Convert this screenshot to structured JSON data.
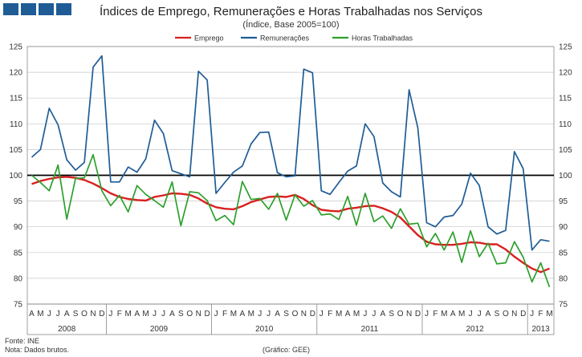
{
  "header": {
    "title": "Índices de Emprego, Remunerações e Horas Trabalhadas nos Serviços",
    "subtitle": "(Índice, Base 2005=100)"
  },
  "footer": {
    "source": "Fonte: INE",
    "note": "Nota: Dados brutos.",
    "credit": "(Gráfico: GEE)"
  },
  "colors": {
    "brand": "#1f5c96"
  },
  "chart_data": {
    "type": "line",
    "title": "Índices de Emprego, Remunerações e Horas Trabalhadas nos Serviços",
    "subtitle": "(Índice, Base 2005=100)",
    "legend_position": "top-center",
    "grid": true,
    "ylim": [
      75,
      125
    ],
    "yticks": [
      75,
      80,
      85,
      90,
      95,
      100,
      105,
      110,
      115,
      120,
      125
    ],
    "reference_line": 100,
    "x": [
      "A",
      "M",
      "J",
      "J",
      "A",
      "S",
      "O",
      "N",
      "D",
      "J",
      "F",
      "M",
      "A",
      "M",
      "J",
      "J",
      "A",
      "S",
      "O",
      "N",
      "D",
      "J",
      "F",
      "M",
      "A",
      "M",
      "J",
      "J",
      "A",
      "S",
      "O",
      "N",
      "D",
      "J",
      "F",
      "M",
      "A",
      "M",
      "J",
      "J",
      "A",
      "S",
      "O",
      "N",
      "D",
      "J",
      "F",
      "M",
      "A",
      "M",
      "J",
      "J",
      "A",
      "S",
      "O",
      "N",
      "D",
      "J",
      "F",
      "M"
    ],
    "years": [
      {
        "label": "2008",
        "start": 0,
        "count": 9
      },
      {
        "label": "2009",
        "start": 9,
        "count": 12
      },
      {
        "label": "2010",
        "start": 21,
        "count": 12
      },
      {
        "label": "2011",
        "start": 33,
        "count": 12
      },
      {
        "label": "2012",
        "start": 45,
        "count": 12
      },
      {
        "label": "2013",
        "start": 57,
        "count": 3
      }
    ],
    "series": [
      {
        "name": "Emprego",
        "color": "#d9201f",
        "values": [
          98.3,
          98.9,
          99.3,
          99.6,
          99.7,
          99.5,
          99.1,
          98.4,
          97.5,
          96.5,
          95.8,
          95.4,
          95.2,
          95.1,
          95.8,
          96.1,
          96.5,
          96.4,
          96.2,
          95.5,
          94.5,
          93.8,
          93.5,
          93.4,
          94.0,
          94.8,
          95.3,
          95.8,
          95.9,
          95.8,
          96.2,
          95.4,
          94.2,
          93.3,
          93.1,
          93.0,
          93.5,
          93.7,
          94.0,
          94.1,
          93.6,
          92.9,
          91.8,
          90.1,
          88.4,
          87.1,
          86.6,
          86.5,
          86.5,
          86.7,
          87.0,
          86.9,
          86.6,
          86.6,
          85.6,
          84.2,
          83.0,
          81.9,
          81.2,
          81.9
        ]
      },
      {
        "name": "Remunerações",
        "color": "#1f5c96",
        "values": [
          103.5,
          105.0,
          113.0,
          109.8,
          103.0,
          101.0,
          102.5,
          121.0,
          123.2,
          98.7,
          98.7,
          101.6,
          100.6,
          103.2,
          110.7,
          108.1,
          100.9,
          100.3,
          99.7,
          120.2,
          118.5,
          96.5,
          98.6,
          100.6,
          101.8,
          106.1,
          108.3,
          108.4,
          100.5,
          99.7,
          99.9,
          120.6,
          119.9,
          97.0,
          96.3,
          98.6,
          100.8,
          101.8,
          110.0,
          107.5,
          98.5,
          96.8,
          95.8,
          116.6,
          109.2,
          90.8,
          90.0,
          91.9,
          92.2,
          94.4,
          100.4,
          98.0,
          90.0,
          88.6,
          89.3,
          104.6,
          101.3,
          85.5,
          87.5,
          87.2
        ]
      },
      {
        "name": "Horas Trabalhadas",
        "color": "#2ca02c",
        "values": [
          100.0,
          98.6,
          97.0,
          102.0,
          91.5,
          99.4,
          99.5,
          104.0,
          97.0,
          94.1,
          96.1,
          92.9,
          98.0,
          96.3,
          95.1,
          93.8,
          98.7,
          90.2,
          96.8,
          96.6,
          95.1,
          91.2,
          92.2,
          90.4,
          98.8,
          95.3,
          95.5,
          93.4,
          96.5,
          91.3,
          96.2,
          94.0,
          95.1,
          92.3,
          92.5,
          91.4,
          95.9,
          90.3,
          96.5,
          91.0,
          92.1,
          89.7,
          93.5,
          90.5,
          90.7,
          86.1,
          88.7,
          85.5,
          89.0,
          83.1,
          89.2,
          84.2,
          86.8,
          82.8,
          83.0,
          87.1,
          84.1,
          79.3,
          83.0,
          78.3
        ]
      }
    ]
  }
}
